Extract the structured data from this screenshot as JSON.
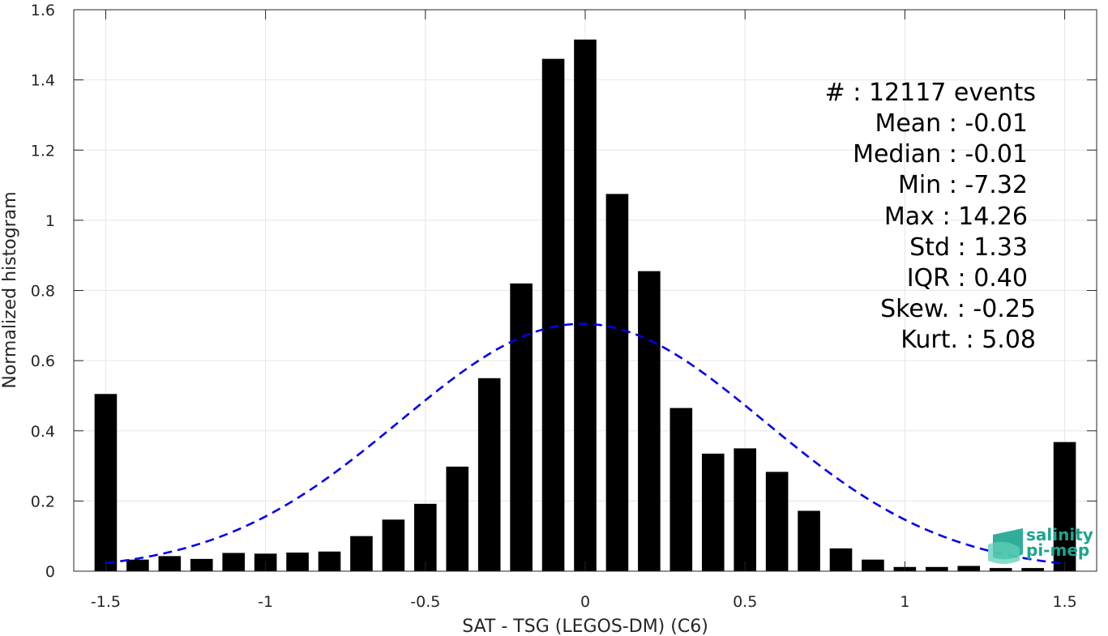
{
  "chart_data": {
    "type": "bar",
    "xlabel": "SAT - TSG (LEGOS-DM) (C6)",
    "ylabel": "Normalized histogram",
    "xlim": [
      -1.6,
      1.6
    ],
    "ylim": [
      0,
      1.6
    ],
    "grid": true,
    "x_ticks": [
      -1.5,
      -1,
      -0.5,
      0,
      0.5,
      1,
      1.5
    ],
    "x_tick_labels": [
      "-1.5",
      "-1",
      "-0.5",
      "0",
      "0.5",
      "1",
      "1.5"
    ],
    "y_ticks": [
      0,
      0.2,
      0.4,
      0.6,
      0.8,
      1,
      1.2,
      1.4,
      1.6
    ],
    "y_tick_labels": [
      "0",
      "0.2",
      "0.4",
      "0.6",
      "0.8",
      "1",
      "1.2",
      "1.4",
      "1.6"
    ],
    "bar_width": 0.07,
    "bar_color": "#000000",
    "x": [
      -1.5,
      -1.4,
      -1.3,
      -1.2,
      -1.1,
      -1.0,
      -0.9,
      -0.8,
      -0.7,
      -0.6,
      -0.5,
      -0.4,
      -0.3,
      -0.2,
      -0.1,
      0.0,
      0.1,
      0.2,
      0.3,
      0.4,
      0.5,
      0.6,
      0.7,
      0.8,
      0.9,
      1.0,
      1.1,
      1.2,
      1.3,
      1.4,
      1.5
    ],
    "values": [
      0.505,
      0.033,
      0.043,
      0.035,
      0.052,
      0.05,
      0.053,
      0.056,
      0.1,
      0.147,
      0.192,
      0.298,
      0.55,
      0.82,
      1.46,
      1.515,
      1.075,
      0.855,
      0.465,
      0.335,
      0.35,
      0.283,
      0.172,
      0.065,
      0.033,
      0.012,
      0.012,
      0.015,
      0.009,
      0.009,
      0.368
    ],
    "fit_curve": {
      "type": "normal",
      "mean": -0.01,
      "peak": 0.705,
      "sigma": 0.57,
      "x_range": [
        -1.5,
        1.5
      ],
      "color": "#0000ee",
      "style": "dashed"
    },
    "annotations": [
      "#  : 12117 events",
      "Mean : -0.01",
      "Median : -0.01",
      "Min : -7.32",
      "Max : 14.26",
      "Std : 1.33",
      "IQR : 0.40",
      "Skew. : -0.25",
      "Kurt. : 5.08"
    ]
  },
  "logo": {
    "line1": "salinity",
    "line2": "pi-mep",
    "color": "#1aa58f"
  }
}
